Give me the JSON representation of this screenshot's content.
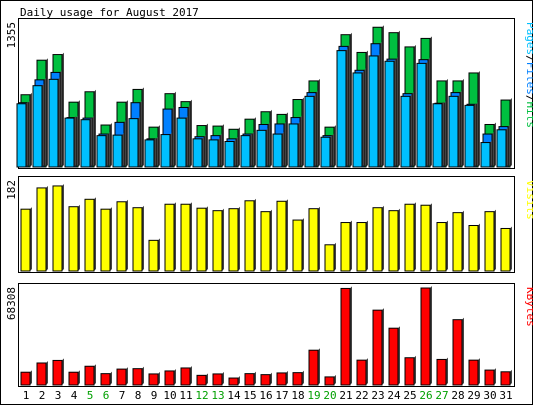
{
  "title": "Daily usage for August 2017",
  "chart_data": {
    "type": "bar",
    "title": "Daily usage for August 2017",
    "days": [
      "1",
      "2",
      "3",
      "4",
      "5",
      "6",
      "7",
      "8",
      "9",
      "10",
      "11",
      "12",
      "13",
      "14",
      "15",
      "16",
      "17",
      "18",
      "19",
      "20",
      "21",
      "22",
      "23",
      "24",
      "25",
      "26",
      "27",
      "28",
      "29",
      "30",
      "31"
    ],
    "weekend_days": [
      "5",
      "6",
      "12",
      "13",
      "19",
      "20",
      "26",
      "27"
    ],
    "colors": {
      "hits": "#00c040",
      "files": "#0080ff",
      "pages": "#00c0ff",
      "visits": "#ffff00",
      "kbytes": "#ff0000",
      "weekday_label": "#000000",
      "weekend_label": "#00a000"
    },
    "panels": [
      {
        "id": "hits-files-pages",
        "max_label": "1355",
        "ymax": 1355,
        "legend": {
          "pages": "Pages",
          "files": "Files",
          "hits": "Hits",
          "separator": "/"
        },
        "series": [
          {
            "name": "Hits",
            "values": [
              680,
              1005,
              1058,
              610,
              708,
              395,
              610,
              730,
              375,
              690,
              615,
              390,
              385,
              355,
              450,
              520,
              495,
              635,
              810,
              375,
              1245,
              1078,
              1315,
              1264,
              1130,
              1210,
              810,
              810,
              885,
              400,
              630
            ]
          },
          {
            "name": "Files",
            "values": [
              605,
              820,
              890,
              465,
              460,
              310,
              420,
              605,
              265,
              545,
              560,
              285,
              295,
              265,
              310,
              400,
              405,
              465,
              700,
              295,
              1135,
              910,
              1160,
              1015,
              690,
              1010,
              600,
              700,
              590,
              310,
              380
            ]
          },
          {
            "name": "Pages",
            "values": [
              595,
              765,
              825,
              460,
              445,
              295,
              300,
              455,
              255,
              305,
              460,
              265,
              255,
              240,
              295,
              345,
              310,
              405,
              665,
              280,
              1095,
              885,
              1045,
              995,
              665,
              975,
              595,
              665,
              580,
              230,
              350
            ]
          }
        ]
      },
      {
        "id": "visits",
        "max_label": "182",
        "ymax": 182,
        "legend": "Visits",
        "series": [
          {
            "name": "Visits",
            "values": [
              125,
              168,
              172,
              130,
              145,
              125,
              140,
              128,
              62,
              135,
              135,
              127,
              122,
              126,
              142,
              120,
              141,
              103,
              126,
              53,
              98,
              98,
              128,
              122,
              135,
              133,
              98,
              118,
              92,
              120,
              86
            ]
          }
        ]
      },
      {
        "id": "kbytes",
        "max_label": "68308",
        "ymax": 68308,
        "legend": "KBytes",
        "series": [
          {
            "name": "KBytes",
            "values": [
              9000,
              15500,
              17300,
              9000,
              13200,
              8000,
              11200,
              11500,
              7800,
              9900,
              12000,
              6800,
              7800,
              4900,
              8000,
              7300,
              8500,
              8700,
              24500,
              5700,
              68000,
              17500,
              52700,
              40000,
              19200,
              68300,
              18000,
              46000,
              17500,
              10500,
              9300
            ]
          }
        ]
      }
    ]
  }
}
